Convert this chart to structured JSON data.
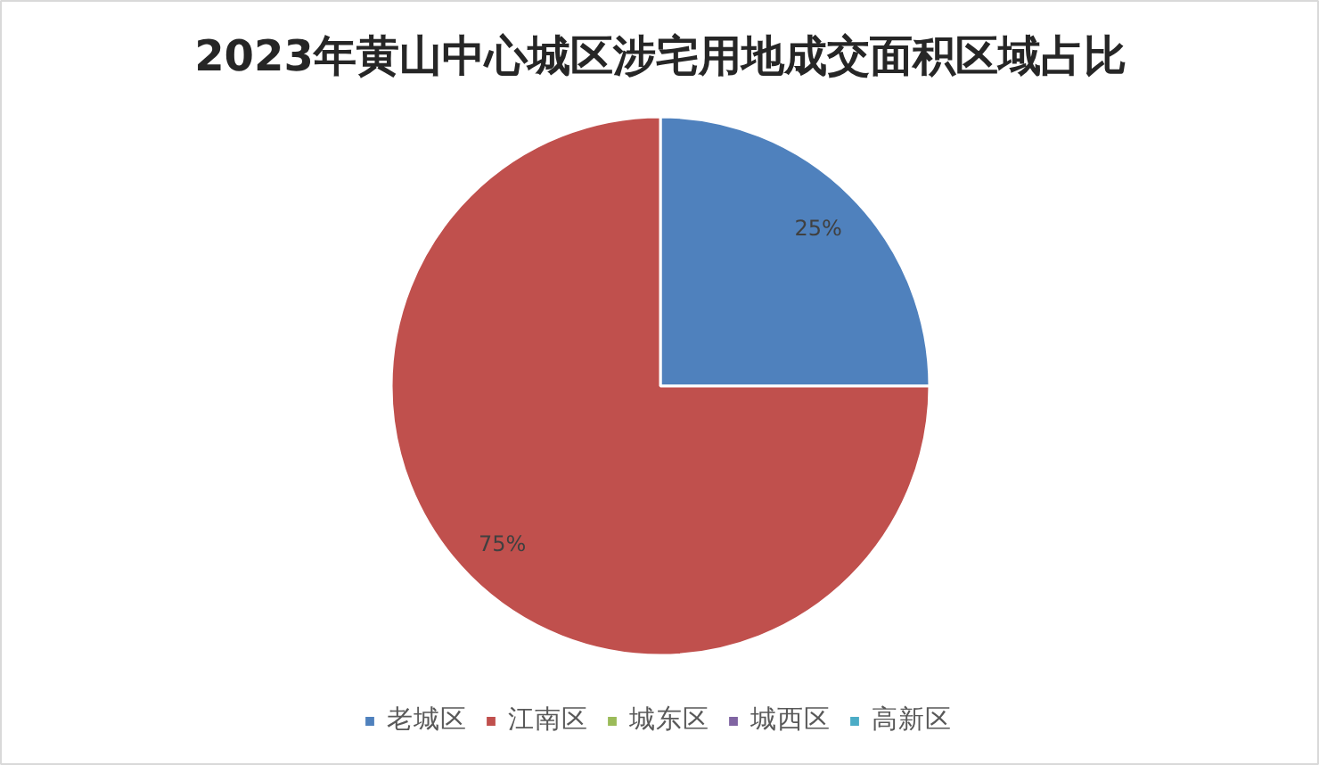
{
  "chart_data": {
    "type": "pie",
    "title": "2023年黄山中心城区涉宅用地成交面积区域占比",
    "categories": [
      "老城区",
      "江南区",
      "城东区",
      "城西区",
      "高新区"
    ],
    "values": [
      25,
      75,
      0,
      0,
      0
    ],
    "colors": [
      "#4f81bd",
      "#c0504d",
      "#9bbb59",
      "#8064a2",
      "#4bacc6"
    ],
    "value_labels": [
      "25%",
      "75%",
      null,
      null,
      null
    ],
    "legend": "bottom"
  }
}
